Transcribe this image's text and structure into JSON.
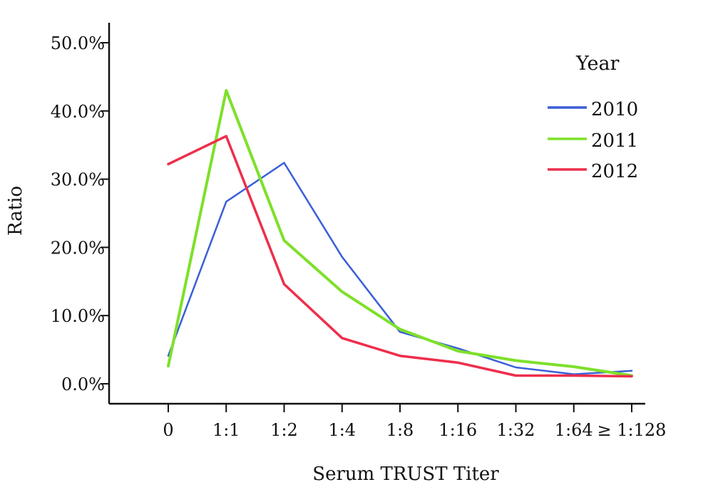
{
  "chart_data": {
    "type": "line",
    "xlabel": "Serum TRUST Titer",
    "ylabel": "Ratio",
    "categories": [
      "0",
      "1:1",
      "1:2",
      "1:4",
      "1:8",
      "1:16",
      "1:32",
      "1:64",
      "≥ 1:128"
    ],
    "yticks": [
      "0.0%",
      "10.0%",
      "20.0%",
      "30.0%",
      "40.0%",
      "50.0%"
    ],
    "ylim": [
      0,
      50
    ],
    "grid": false,
    "legend": {
      "title": "Year",
      "position": "top-right"
    },
    "series": [
      {
        "name": "2010",
        "color": "#3a5fd8",
        "values": [
          4.1,
          26.7,
          32.4,
          18.6,
          7.6,
          5.2,
          2.4,
          1.4,
          1.9
        ]
      },
      {
        "name": "2011",
        "color": "#7ee02a",
        "values": [
          2.6,
          43.0,
          21.0,
          13.5,
          8.0,
          4.8,
          3.4,
          2.5,
          1.2
        ]
      },
      {
        "name": "2012",
        "color": "#ee2e4b",
        "values": [
          32.2,
          36.3,
          14.6,
          6.7,
          4.1,
          3.1,
          1.2,
          1.2,
          1.1
        ]
      }
    ]
  }
}
